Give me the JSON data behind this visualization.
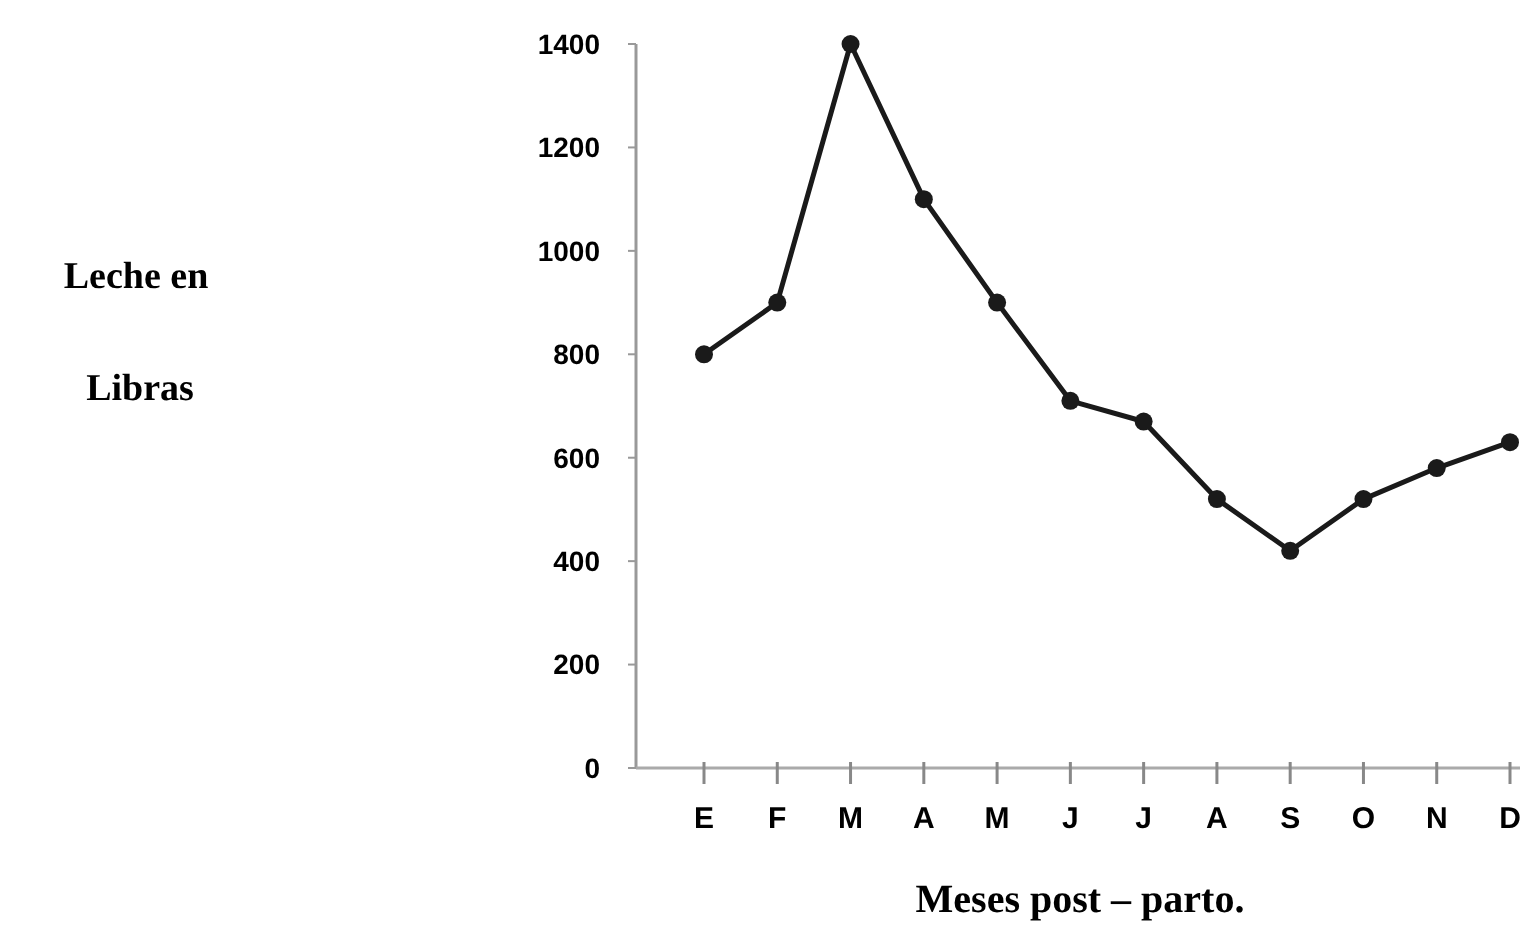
{
  "chart_data": {
    "type": "line",
    "xlabel": "Meses post – parto.",
    "ylabel": "Leche en Libras",
    "categories": [
      "E",
      "F",
      "M",
      "A",
      "M",
      "J",
      "J",
      "A",
      "S",
      "O",
      "N",
      "D"
    ],
    "series": [
      {
        "color": "#1a1a1a",
        "values": [
          800,
          900,
          1400,
          1100,
          900,
          710,
          670,
          520,
          420,
          520,
          580,
          630
        ]
      }
    ],
    "ylim": [
      0,
      1400
    ],
    "yticks": [
      0,
      200,
      400,
      600,
      800,
      1000,
      1200,
      1400
    ],
    "grid": false,
    "marker": "circle",
    "line_style": "solid"
  }
}
